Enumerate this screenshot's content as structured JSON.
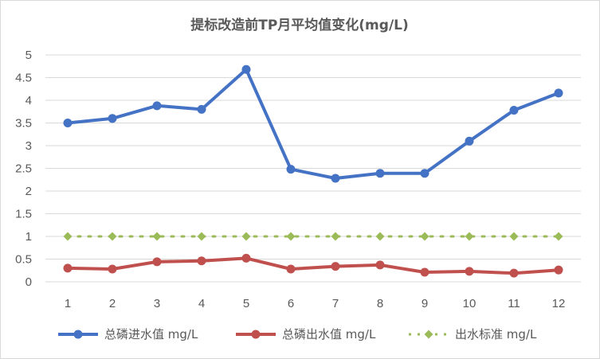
{
  "chart_data": {
    "type": "line",
    "title": "提标改造前TP月平均值变化(mg/L)",
    "x": [
      "1",
      "2",
      "3",
      "4",
      "5",
      "6",
      "7",
      "8",
      "9",
      "10",
      "11",
      "12"
    ],
    "ylim": [
      0,
      5
    ],
    "yticks": [
      "0",
      "0.5",
      "1",
      "1.5",
      "2",
      "2.5",
      "3",
      "3.5",
      "4",
      "4.5",
      "5"
    ],
    "grid": "horizontal",
    "legend_position": "bottom",
    "series": [
      {
        "name": "总磷进水值 mg/L",
        "color": "#4472c4",
        "marker": "circle",
        "values": [
          3.5,
          3.6,
          3.88,
          3.8,
          4.68,
          2.48,
          2.28,
          2.39,
          2.39,
          3.1,
          3.78,
          4.16
        ]
      },
      {
        "name": "总磷出水值 mg/L",
        "color": "#c0504d",
        "marker": "circle",
        "values": [
          0.3,
          0.28,
          0.44,
          0.46,
          0.52,
          0.28,
          0.34,
          0.37,
          0.21,
          0.23,
          0.19,
          0.26
        ]
      },
      {
        "name": "出水标准 mg/L",
        "color": "#9bbb59",
        "marker": "circle",
        "dashed": true,
        "values": [
          1,
          1,
          1,
          1,
          1,
          1,
          1,
          1,
          1,
          1,
          1,
          1
        ]
      }
    ]
  }
}
